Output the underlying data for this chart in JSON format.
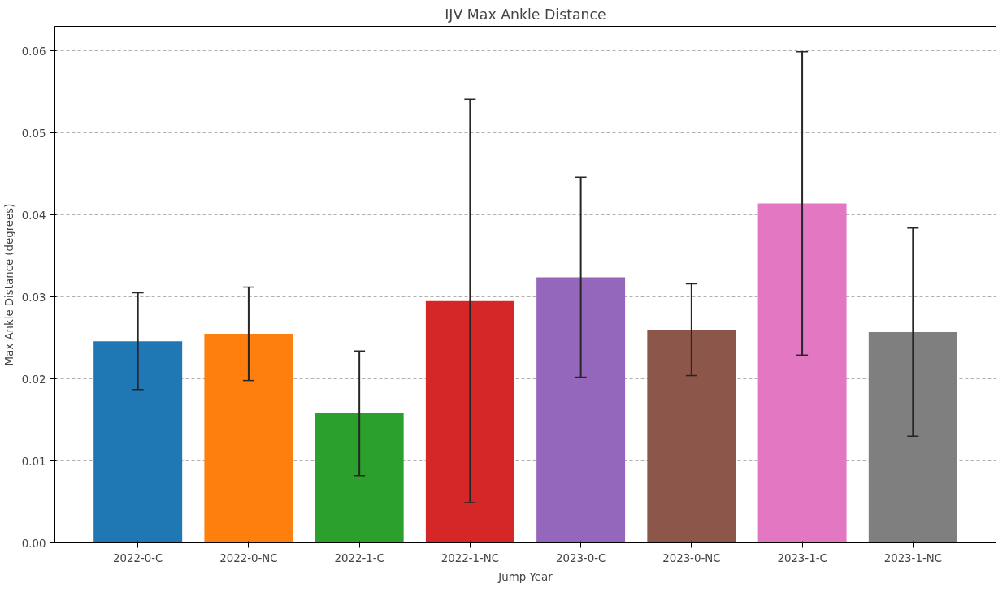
{
  "chart_data": {
    "type": "bar",
    "title": "IJV Max Ankle Distance",
    "xlabel": "Jump Year",
    "ylabel": "Max Ankle Distance (degrees)",
    "categories": [
      "2022-0-C",
      "2022-0-NC",
      "2022-1-C",
      "2022-1-NC",
      "2023-0-C",
      "2023-0-NC",
      "2023-1-C",
      "2023-1-NC"
    ],
    "values": [
      0.0246,
      0.0255,
      0.0158,
      0.0295,
      0.0324,
      0.026,
      0.0414,
      0.0257
    ],
    "errors": [
      0.0059,
      0.0057,
      0.0076,
      0.0246,
      0.0122,
      0.0056,
      0.0185,
      0.0127
    ],
    "colors": [
      "#1f77b4",
      "#ff7f0e",
      "#2ca02c",
      "#d62728",
      "#9467bd",
      "#8c564b",
      "#e377c2",
      "#7f7f7f"
    ],
    "ylim": [
      0,
      0.063
    ],
    "yticks": [
      {
        "value": 0,
        "label": "0.00"
      },
      {
        "value": 0.01,
        "label": "0.01"
      },
      {
        "value": 0.02,
        "label": "0.02"
      },
      {
        "value": 0.03,
        "label": "0.03"
      },
      {
        "value": 0.04,
        "label": "0.04"
      },
      {
        "value": 0.05,
        "label": "0.05"
      },
      {
        "value": 0.06,
        "label": "0.06"
      }
    ],
    "grid": "y"
  }
}
